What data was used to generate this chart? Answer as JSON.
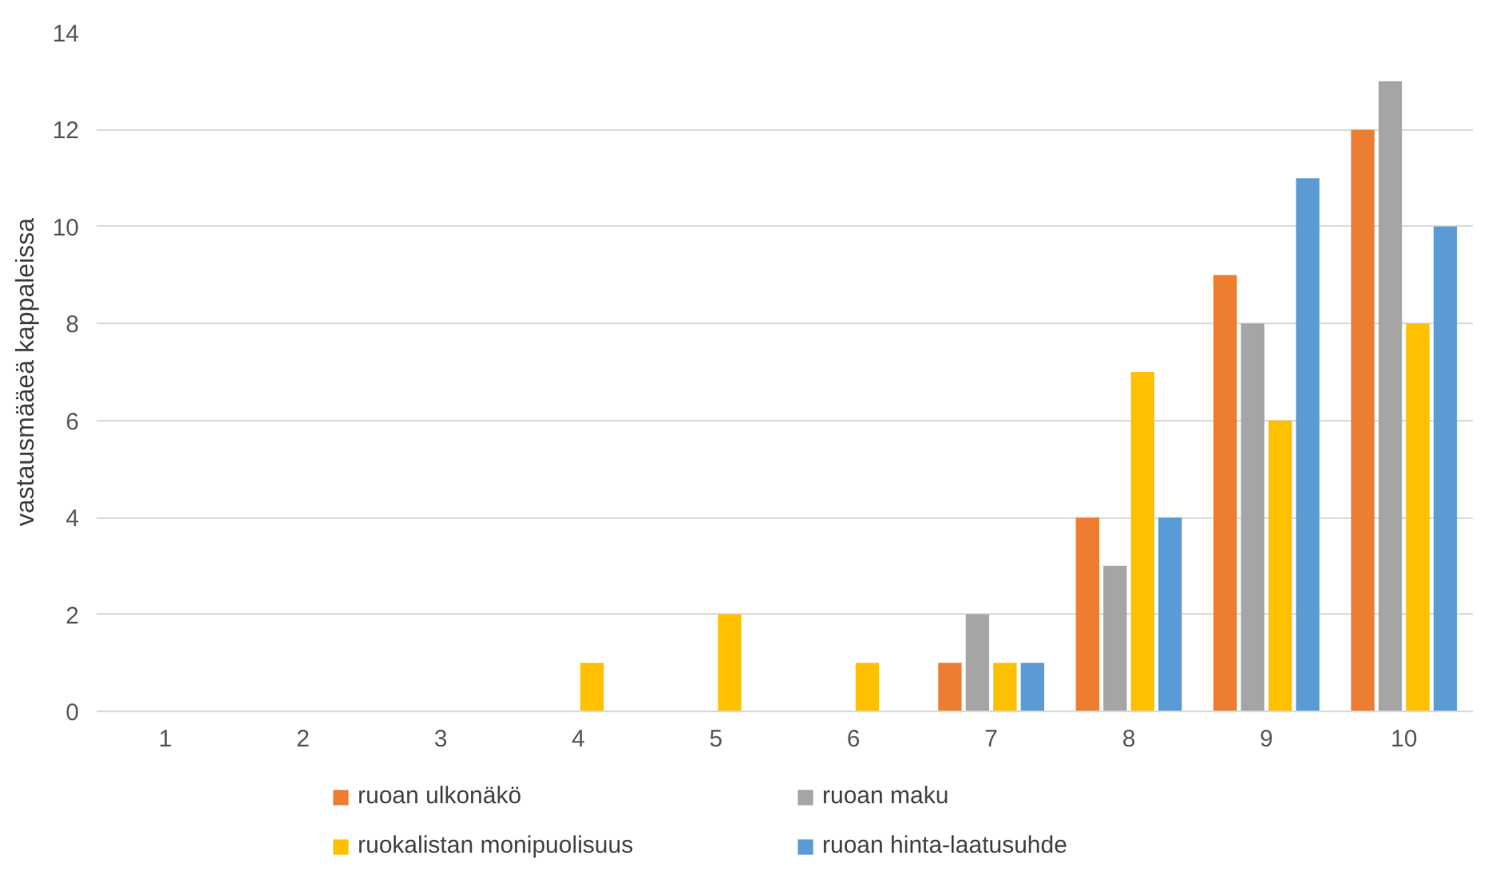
{
  "chart_data": {
    "type": "bar",
    "ylabel": "vastausmääeä kappaleissa",
    "categories": [
      "1",
      "2",
      "3",
      "4",
      "5",
      "6",
      "7",
      "8",
      "9",
      "10"
    ],
    "series": [
      {
        "name": "ruoan ulkonäkö",
        "color": "#ed7d31",
        "values": [
          0,
          0,
          0,
          0,
          0,
          0,
          1,
          4,
          9,
          12
        ]
      },
      {
        "name": "ruoan maku",
        "color": "#a5a5a5",
        "values": [
          0,
          0,
          0,
          0,
          0,
          0,
          2,
          3,
          8,
          13
        ]
      },
      {
        "name": "ruokalistan monipuolisuus",
        "color": "#ffc000",
        "values": [
          0,
          0,
          0,
          1,
          2,
          1,
          1,
          7,
          6,
          8
        ]
      },
      {
        "name": "ruoan hinta-laatusuhde",
        "color": "#5b9bd5",
        "values": [
          0,
          0,
          0,
          0,
          0,
          0,
          1,
          4,
          11,
          10
        ]
      }
    ],
    "ylim": [
      0,
      14
    ],
    "yticks": [
      0,
      2,
      4,
      6,
      8,
      10,
      12,
      14
    ],
    "grid": "y",
    "legend": "bottom"
  }
}
